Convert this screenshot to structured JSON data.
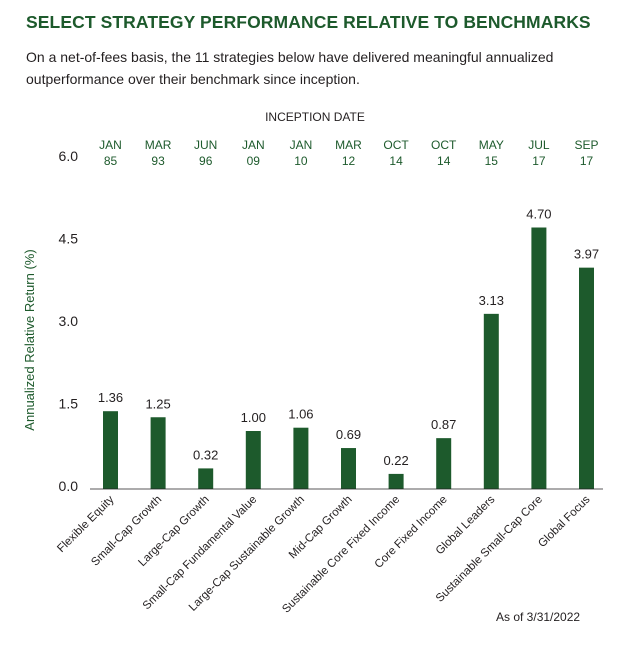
{
  "title": "SELECT STRATEGY PERFORMANCE RELATIVE TO BENCHMARKS",
  "subtitle": "On a net-of-fees basis, the 11 strategies below have delivered meaningful annualized outperformance over their benchmark since inception.",
  "inception_header": "INCEPTION DATE",
  "as_of": "As of 3/31/2022",
  "colors": {
    "bar": "#1d5a2c",
    "title": "#1d5a2c",
    "inception": "#1d5a2c",
    "text": "#231f20"
  },
  "chart_data": {
    "type": "bar",
    "title": "SELECT STRATEGY PERFORMANCE RELATIVE TO BENCHMARKS",
    "xlabel": "",
    "ylabel": "Annualized Relative Return (%)",
    "ylim": [
      0,
      6
    ],
    "yticks": [
      "0.0",
      "1.5",
      "3.0",
      "4.5",
      "6.0"
    ],
    "grid": false,
    "categories": [
      "Flexible Equity",
      "Small-Cap Growth",
      "Large-Cap Growth",
      "Small-Cap Fundamental Value",
      "Large-Cap Sustainable Growth",
      "Mid-Cap Growth",
      "Sustainable Core Fixed Income",
      "Core Fixed Income",
      "Global Leaders",
      "Sustainable Small-Cap Core",
      "Global Focus"
    ],
    "values": [
      1.36,
      1.25,
      0.32,
      1.0,
      1.06,
      0.69,
      0.22,
      0.87,
      3.13,
      4.7,
      3.97
    ],
    "value_labels": [
      "1.36",
      "1.25",
      "0.32",
      "1.00",
      "1.06",
      "0.69",
      "0.22",
      "0.87",
      "3.13",
      "4.70",
      "3.97"
    ],
    "inception_dates": [
      {
        "month": "JAN",
        "year": "85"
      },
      {
        "month": "MAR",
        "year": "93"
      },
      {
        "month": "JUN",
        "year": "96"
      },
      {
        "month": "JAN",
        "year": "09"
      },
      {
        "month": "JAN",
        "year": "10"
      },
      {
        "month": "MAR",
        "year": "12"
      },
      {
        "month": "OCT",
        "year": "14"
      },
      {
        "month": "OCT",
        "year": "14"
      },
      {
        "month": "MAY",
        "year": "15"
      },
      {
        "month": "JUL",
        "year": "17"
      },
      {
        "month": "SEP",
        "year": "17"
      }
    ]
  }
}
